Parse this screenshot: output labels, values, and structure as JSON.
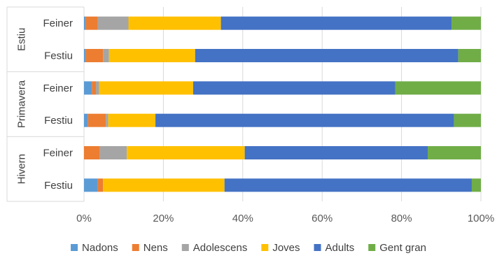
{
  "chart_data": {
    "type": "bar",
    "orientation": "horizontal",
    "stacked": "percent",
    "title": "",
    "xlabel": "",
    "ylabel": "",
    "xlim": [
      0,
      100
    ],
    "x_ticks": [
      "0%",
      "20%",
      "40%",
      "60%",
      "80%",
      "100%"
    ],
    "grid": true,
    "legend_position": "bottom",
    "groups": [
      {
        "name": "Estiu",
        "categories": [
          "Feiner",
          "Festiu"
        ]
      },
      {
        "name": "Primavera",
        "categories": [
          "Feiner",
          "Festiu"
        ]
      },
      {
        "name": "Hivern",
        "categories": [
          "Feiner",
          "Festiu"
        ]
      }
    ],
    "series": [
      {
        "name": "Nadons",
        "color": "#5B9BD5",
        "values": [
          0.5,
          0.5,
          2.0,
          1.0,
          0.0,
          3.5
        ]
      },
      {
        "name": "Nens",
        "color": "#ED7D31",
        "values": [
          3.0,
          4.3,
          1.0,
          4.5,
          4.0,
          1.3
        ]
      },
      {
        "name": "Adolescens",
        "color": "#A5A5A5",
        "values": [
          7.7,
          1.5,
          0.8,
          0.6,
          6.8,
          0.0
        ]
      },
      {
        "name": "Joves",
        "color": "#FFC000",
        "values": [
          23.3,
          21.7,
          23.7,
          11.9,
          29.7,
          30.6
        ]
      },
      {
        "name": "Adults",
        "color": "#4472C4",
        "values": [
          58.1,
          66.3,
          50.9,
          75.2,
          46.1,
          62.3
        ]
      },
      {
        "name": "Gent gran",
        "color": "#70AD47",
        "values": [
          7.4,
          5.7,
          21.6,
          6.8,
          13.4,
          2.3
        ]
      }
    ]
  }
}
